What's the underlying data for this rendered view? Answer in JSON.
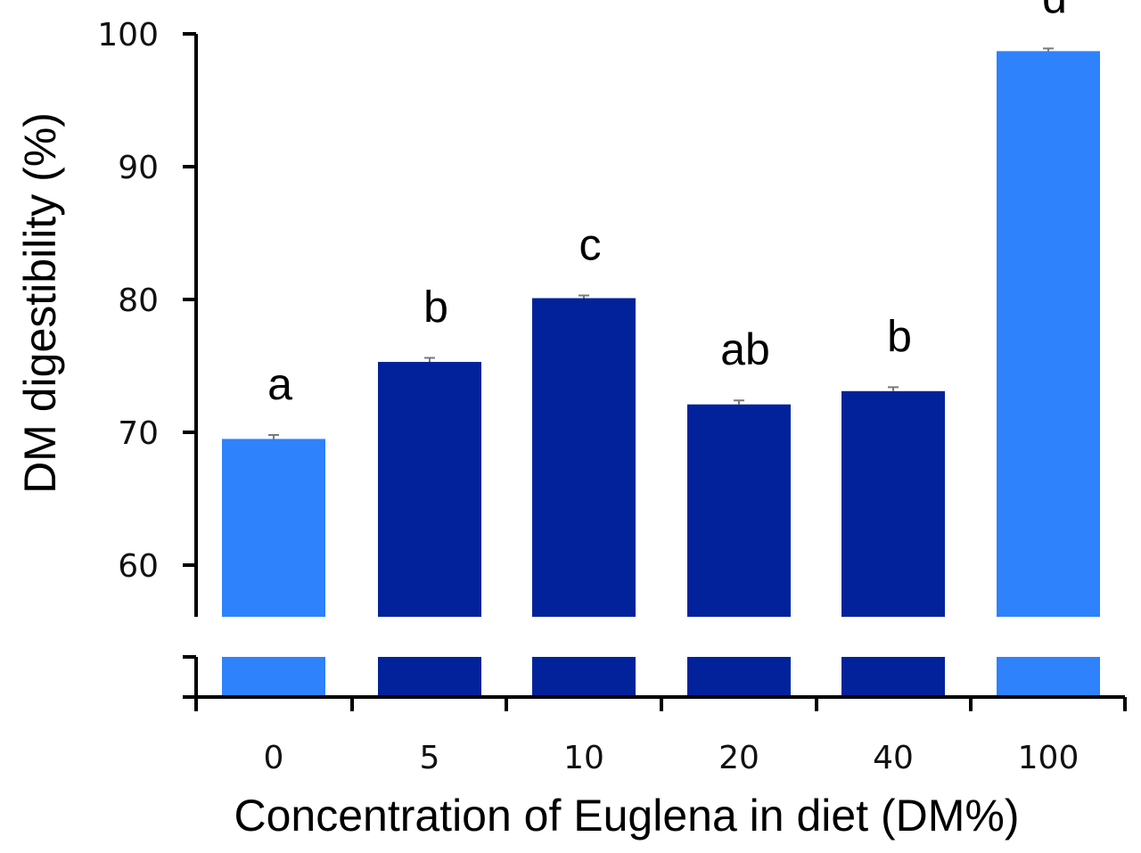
{
  "chart_data": {
    "type": "bar",
    "title": "",
    "xlabel": "Concentration of Euglena in diet (DM%)",
    "ylabel": "DM digestibility (%)",
    "ylim": [
      60,
      100
    ],
    "yticks": [
      60,
      70,
      80,
      90,
      100
    ],
    "axis_break": true,
    "grid": false,
    "legend": "none",
    "categories": [
      "0",
      "5",
      "10",
      "20",
      "40",
      "100"
    ],
    "values": [
      69.5,
      75.3,
      80.1,
      72.1,
      73.1,
      98.7
    ],
    "errors": [
      0.3,
      0.3,
      0.2,
      0.3,
      0.3,
      0.2
    ],
    "significance": [
      "a",
      "b",
      "c",
      "ab",
      "b",
      "d"
    ],
    "colors": [
      "#2e82fb",
      "#02229b",
      "#02229b",
      "#02229b",
      "#02229b",
      "#2e82fb"
    ]
  }
}
